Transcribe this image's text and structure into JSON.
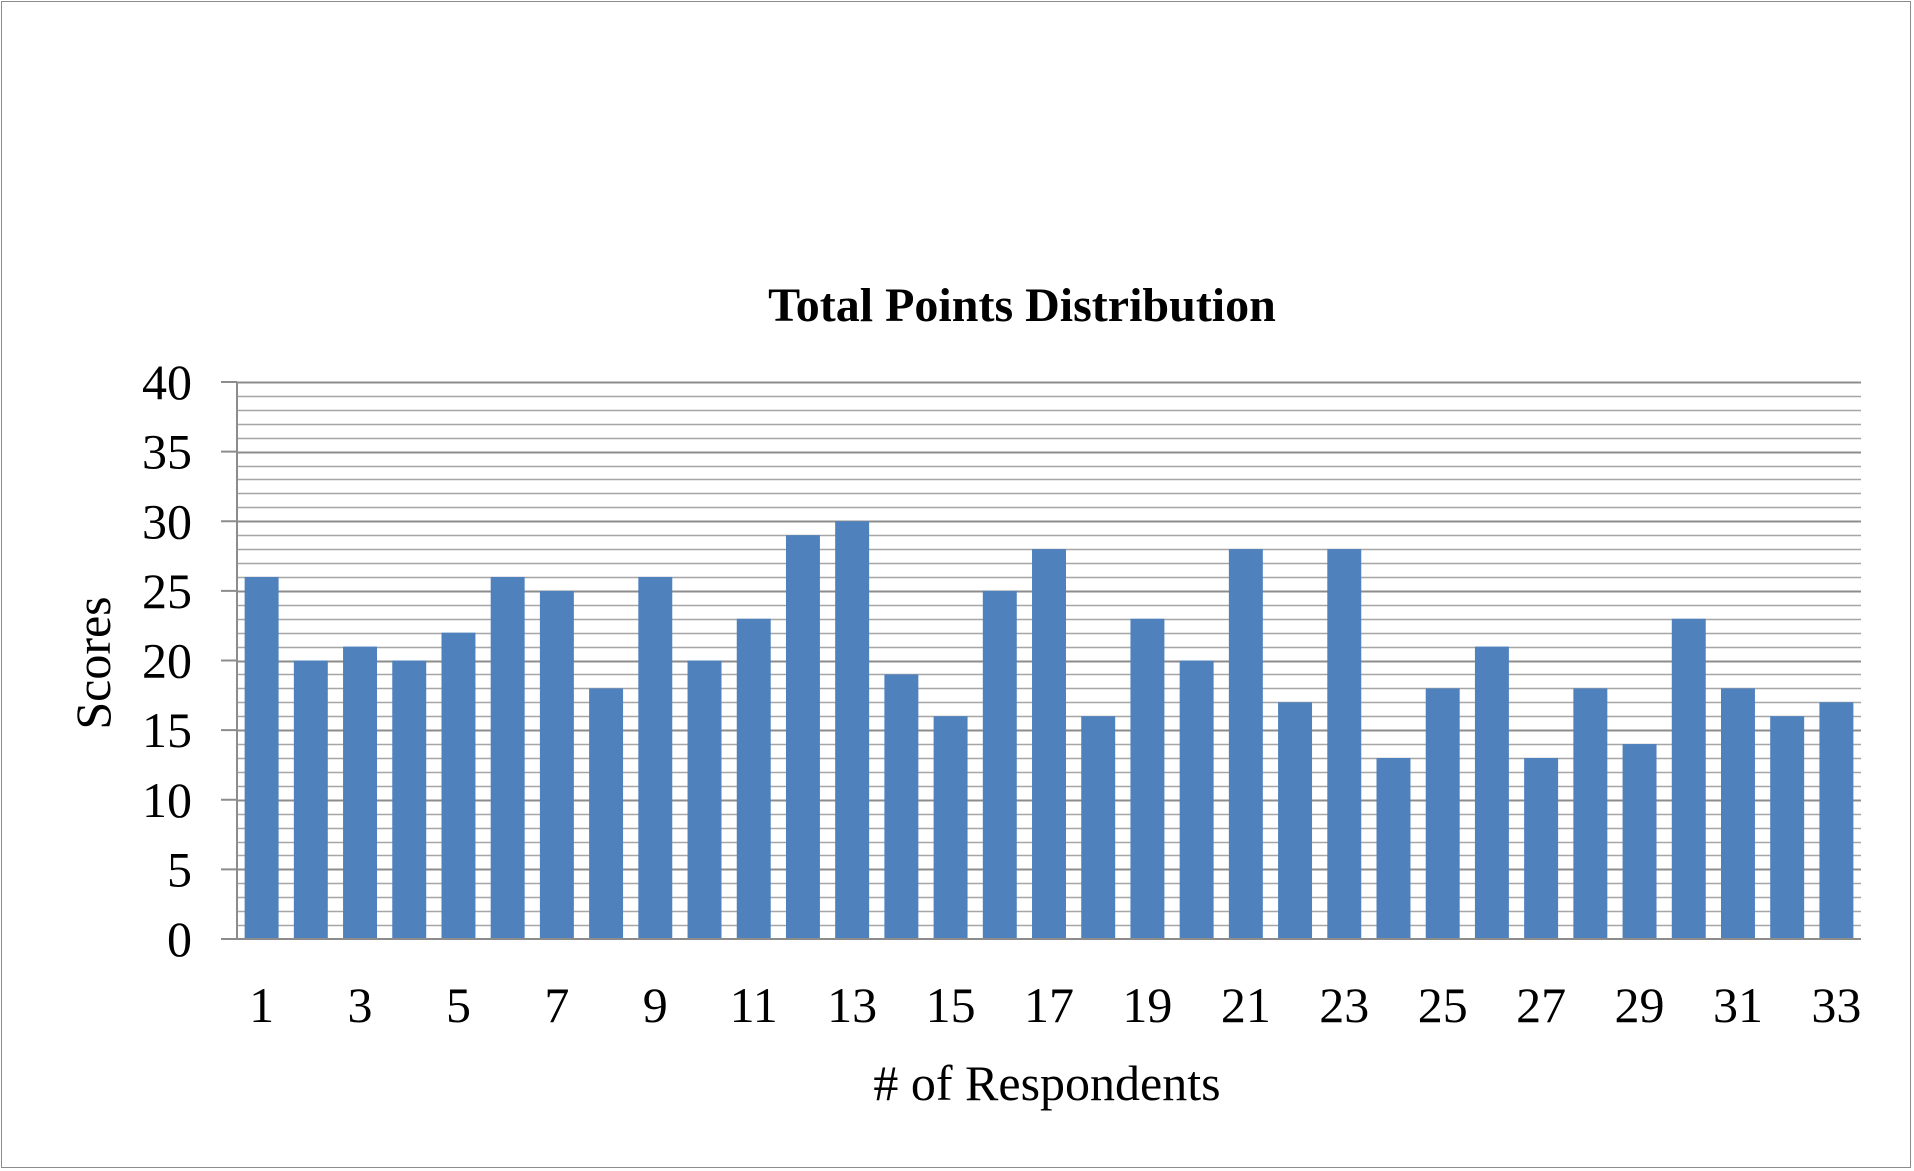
{
  "chart_data": {
    "type": "bar",
    "title": "Total Points Distribution",
    "xlabel": "# of Respondents",
    "ylabel": "Scores",
    "categories": [
      "1",
      "2",
      "3",
      "4",
      "5",
      "6",
      "7",
      "8",
      "9",
      "10",
      "11",
      "12",
      "13",
      "14",
      "15",
      "16",
      "17",
      "18",
      "19",
      "20",
      "21",
      "22",
      "23",
      "24",
      "25",
      "26",
      "27",
      "28",
      "29",
      "30",
      "31",
      "32",
      "33"
    ],
    "x_tick_labels": [
      "1",
      "3",
      "5",
      "7",
      "9",
      "11",
      "13",
      "15",
      "17",
      "19",
      "21",
      "23",
      "25",
      "27",
      "29",
      "31",
      "33"
    ],
    "y_tick_labels": [
      "0",
      "5",
      "10",
      "15",
      "20",
      "25",
      "30",
      "35",
      "40"
    ],
    "values": [
      26,
      20,
      21,
      20,
      22,
      26,
      25,
      18,
      26,
      20,
      23,
      29,
      30,
      19,
      16,
      25,
      28,
      16,
      23,
      20,
      28,
      17,
      28,
      13,
      18,
      21,
      13,
      18,
      14,
      23,
      18,
      16,
      17
    ],
    "ylim": [
      0,
      40
    ],
    "major_tick_step": 5,
    "minor_grid_step": 1,
    "grid": true,
    "legend": "none",
    "bar_color": "#4f81bd",
    "grid_color": "#a6a6a6",
    "major_grid_color": "#8c8c8c"
  }
}
